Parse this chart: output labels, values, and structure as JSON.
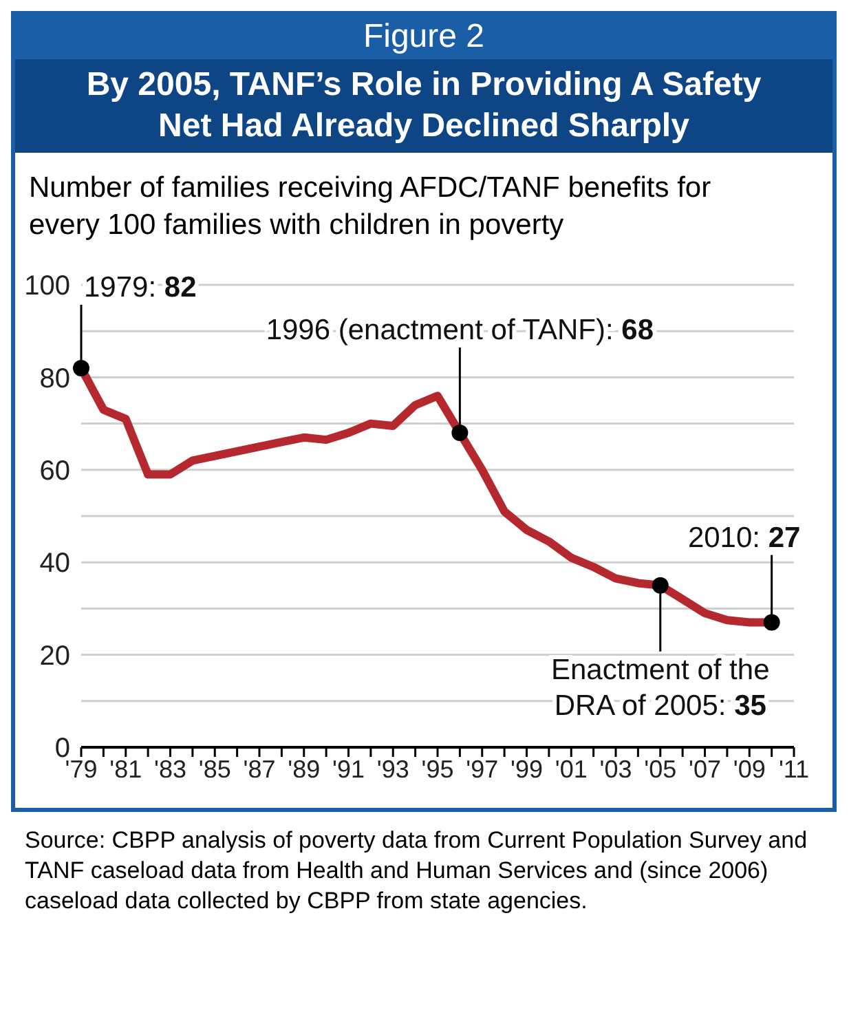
{
  "chart_data": {
    "type": "line",
    "title": "Figure 2",
    "subtitle": "By 2005, TANF’s Role in Providing A Safety Net Had Already Declined Sharply",
    "ylabel": "Number of families receiving AFDC/TANF benefits for every 100 families with children in poverty",
    "x": [
      1979,
      1980,
      1981,
      1982,
      1983,
      1984,
      1985,
      1986,
      1987,
      1988,
      1989,
      1990,
      1991,
      1992,
      1993,
      1994,
      1995,
      1996,
      1997,
      1998,
      1999,
      2000,
      2001,
      2002,
      2003,
      2004,
      2005,
      2006,
      2007,
      2008,
      2009,
      2010
    ],
    "series": [
      {
        "color": "#b5282e",
        "values": [
          82,
          73,
          71,
          59,
          59,
          62,
          63,
          64,
          65,
          66,
          67,
          66.5,
          68,
          70,
          69.5,
          74,
          76,
          68,
          60,
          51,
          47,
          44.5,
          41,
          39,
          36.5,
          35.5,
          35,
          32,
          29,
          27.5,
          27,
          27
        ]
      }
    ],
    "xlim": [
      1979,
      2011
    ],
    "xticks": [
      {
        "value": 1979,
        "label": "'79"
      },
      {
        "value": 1980,
        "label": null
      },
      {
        "value": 1981,
        "label": "'81"
      },
      {
        "value": 1982,
        "label": null
      },
      {
        "value": 1983,
        "label": "'83"
      },
      {
        "value": 1984,
        "label": null
      },
      {
        "value": 1985,
        "label": "'85"
      },
      {
        "value": 1986,
        "label": null
      },
      {
        "value": 1987,
        "label": "'87"
      },
      {
        "value": 1988,
        "label": null
      },
      {
        "value": 1989,
        "label": "'89"
      },
      {
        "value": 1990,
        "label": null
      },
      {
        "value": 1991,
        "label": "'91"
      },
      {
        "value": 1992,
        "label": null
      },
      {
        "value": 1993,
        "label": "'93"
      },
      {
        "value": 1994,
        "label": null
      },
      {
        "value": 1995,
        "label": "'95"
      },
      {
        "value": 1996,
        "label": null
      },
      {
        "value": 1997,
        "label": "'97"
      },
      {
        "value": 1998,
        "label": null
      },
      {
        "value": 1999,
        "label": "'99"
      },
      {
        "value": 2000,
        "label": null
      },
      {
        "value": 2001,
        "label": "'01"
      },
      {
        "value": 2002,
        "label": null
      },
      {
        "value": 2003,
        "label": "'03"
      },
      {
        "value": 2004,
        "label": null
      },
      {
        "value": 2005,
        "label": "'05"
      },
      {
        "value": 2006,
        "label": null
      },
      {
        "value": 2007,
        "label": "'07"
      },
      {
        "value": 2008,
        "label": null
      },
      {
        "value": 2009,
        "label": "'09"
      },
      {
        "value": 2010,
        "label": null
      },
      {
        "value": 2011,
        "label": "'11"
      }
    ],
    "ylim": [
      0,
      100
    ],
    "yticks": [
      0,
      {
        "value": 10,
        "label": null
      },
      20,
      {
        "value": 30,
        "label": null
      },
      40,
      {
        "value": 50,
        "label": null
      },
      60,
      {
        "value": 70,
        "label": null
      },
      80,
      {
        "value": 90,
        "label": null
      },
      100
    ],
    "grid": "y",
    "marker": "none",
    "line_style": "solid",
    "annotations": [
      {
        "text": "1979: 82",
        "x": 1979,
        "y": 82
      },
      {
        "text": "1996 (enactment of TANF): 68",
        "x": 1996,
        "y": 68
      },
      {
        "text": "Enactment of the DRA of 2005: 35",
        "x": 2005,
        "y": 35
      },
      {
        "text": "2010: 27",
        "x": 2010,
        "y": 27
      },
      "Source: CBPP analysis of poverty data from Current Population Survey and TANF caseload data from Health and Human Services and (since 2006) caseload data collected by CBPP from state agencies."
    ]
  }
}
